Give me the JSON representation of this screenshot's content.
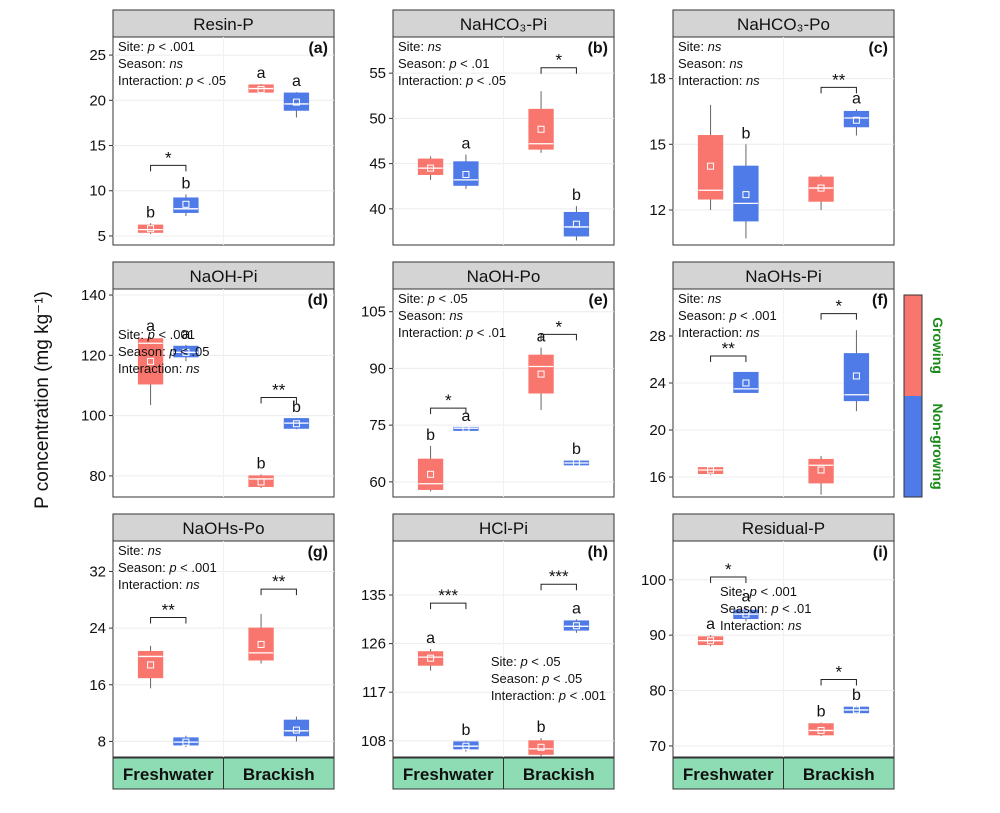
{
  "y_axis_label": "P concentration (mg kg⁻¹)",
  "legend": [
    {
      "label": "Growing",
      "color": "#F8766D"
    },
    {
      "label": "Non-growing",
      "color": "#4F7BE8"
    }
  ],
  "colors": {
    "growing": "#F8766D",
    "nongrowing": "#4F7BE8",
    "strip": "#D4D4D4",
    "xstrip": "#8EDCB4",
    "legend_text": "#1A8A1A"
  },
  "x_categories": [
    "Freshwater",
    "Brackish"
  ],
  "chart_data": [
    {
      "type": "box",
      "title": "Resin-P",
      "tag": "(a)",
      "ylim": [
        4,
        27
      ],
      "yticks": [
        5,
        10,
        15,
        20,
        25
      ],
      "stats": [
        {
          "label": "Site:",
          "value": "p < .001"
        },
        {
          "label": "Season:",
          "value": "ns"
        },
        {
          "label": "Interaction:",
          "value": "p < .05"
        }
      ],
      "groups": [
        {
          "site": "Freshwater",
          "season": "Growing",
          "min": 5.2,
          "q1": 5.4,
          "median": 5.7,
          "q3": 6.2,
          "max": 6.4,
          "mean": 5.8,
          "letter": "b"
        },
        {
          "site": "Freshwater",
          "season": "Non-growing",
          "min": 7.2,
          "q1": 7.6,
          "median": 8.0,
          "q3": 9.2,
          "max": 9.6,
          "mean": 8.5,
          "letter": "b"
        },
        {
          "site": "Brackish",
          "season": "Growing",
          "min": 20.8,
          "q1": 20.9,
          "median": 21.3,
          "q3": 21.7,
          "max": 21.8,
          "mean": 21.2,
          "letter": "a"
        },
        {
          "site": "Brackish",
          "season": "Non-growing",
          "min": 18.1,
          "q1": 18.9,
          "median": 19.6,
          "q3": 20.8,
          "max": 20.9,
          "mean": 19.8,
          "letter": "a"
        }
      ],
      "sig": [
        {
          "site": "Freshwater",
          "label": "*",
          "y": 12.8
        }
      ]
    },
    {
      "type": "box",
      "title": "NaHCO₃-Pi",
      "tag": "(b)",
      "ylim": [
        36,
        59
      ],
      "yticks": [
        40,
        45,
        50,
        55
      ],
      "stats": [
        {
          "label": "Site:",
          "value": "ns"
        },
        {
          "label": "Season:",
          "value": "p < .01"
        },
        {
          "label": "Interaction:",
          "value": "p < .05"
        }
      ],
      "groups": [
        {
          "site": "Freshwater",
          "season": "Growing",
          "min": 43.2,
          "q1": 43.8,
          "median": 44.5,
          "q3": 45.5,
          "max": 45.8,
          "mean": 44.5,
          "letter": ""
        },
        {
          "site": "Freshwater",
          "season": "Non-growing",
          "min": 42.2,
          "q1": 42.6,
          "median": 43.2,
          "q3": 45.2,
          "max": 46.0,
          "mean": 43.8,
          "letter": "a"
        },
        {
          "site": "Brackish",
          "season": "Growing",
          "min": 46.2,
          "q1": 46.6,
          "median": 47.2,
          "q3": 51.0,
          "max": 53.0,
          "mean": 48.8,
          "letter": ""
        },
        {
          "site": "Brackish",
          "season": "Non-growing",
          "min": 36.5,
          "q1": 37.0,
          "median": 38.0,
          "q3": 39.6,
          "max": 40.3,
          "mean": 38.3,
          "letter": "b"
        }
      ],
      "sig": [
        {
          "site": "Brackish",
          "label": "*",
          "y": 55.6
        }
      ]
    },
    {
      "type": "box",
      "title": "NaHCO₃-Po",
      "tag": "(c)",
      "ylim": [
        10.4,
        19.9
      ],
      "yticks": [
        12,
        15,
        18
      ],
      "stats": [
        {
          "label": "Site:",
          "value": "ns"
        },
        {
          "label": "Season:",
          "value": "ns"
        },
        {
          "label": "Interaction:",
          "value": "ns"
        }
      ],
      "groups": [
        {
          "site": "Freshwater",
          "season": "Growing",
          "min": 12.0,
          "q1": 12.5,
          "median": 12.9,
          "q3": 15.4,
          "max": 16.8,
          "mean": 14.0,
          "letter": ""
        },
        {
          "site": "Freshwater",
          "season": "Non-growing",
          "min": 10.7,
          "q1": 11.5,
          "median": 12.3,
          "q3": 14.0,
          "max": 15.0,
          "mean": 12.7,
          "letter": "b"
        },
        {
          "site": "Brackish",
          "season": "Growing",
          "min": 12.0,
          "q1": 12.4,
          "median": 13.0,
          "q3": 13.5,
          "max": 13.6,
          "mean": 13.0,
          "letter": ""
        },
        {
          "site": "Brackish",
          "season": "Non-growing",
          "min": 15.4,
          "q1": 15.8,
          "median": 16.2,
          "q3": 16.5,
          "max": 16.6,
          "mean": 16.1,
          "letter": "a"
        }
      ],
      "sig": [
        {
          "site": "Brackish",
          "label": "**",
          "y": 17.6
        }
      ]
    },
    {
      "type": "box",
      "title": "NaOH-Pi",
      "tag": "(d)",
      "ylim": [
        73,
        142
      ],
      "yticks": [
        80,
        100,
        120,
        140
      ],
      "stats": [
        {
          "label": "Site:",
          "value": "p < .001"
        },
        {
          "label": "Season:",
          "value": "p < .05"
        },
        {
          "label": "Interaction:",
          "value": "ns"
        }
      ],
      "groups": [
        {
          "site": "Freshwater",
          "season": "Growing",
          "min": 103.5,
          "q1": 110.5,
          "median": 124.0,
          "q3": 125.5,
          "max": 126.0,
          "mean": 118.0,
          "letter": "a"
        },
        {
          "site": "Freshwater",
          "season": "Non-growing",
          "min": 118.0,
          "q1": 119.5,
          "median": 121.0,
          "q3": 123.0,
          "max": 123.5,
          "mean": 121.0,
          "letter": "a"
        },
        {
          "site": "Brackish",
          "season": "Growing",
          "min": 76.0,
          "q1": 76.5,
          "median": 79.0,
          "q3": 80.0,
          "max": 80.5,
          "mean": 78.0,
          "letter": "b"
        },
        {
          "site": "Brackish",
          "season": "Non-growing",
          "min": 95.5,
          "q1": 95.8,
          "median": 97.5,
          "q3": 99.0,
          "max": 99.2,
          "mean": 97.3,
          "letter": "b"
        }
      ],
      "sig": [
        {
          "site": "Brackish",
          "label": "**",
          "y": 106.0
        }
      ]
    },
    {
      "type": "box",
      "title": "NaOH-Po",
      "tag": "(e)",
      "ylim": [
        56,
        111
      ],
      "yticks": [
        60,
        75,
        90,
        105
      ],
      "stats": [
        {
          "label": "Site:",
          "value": "p < .05"
        },
        {
          "label": "Season:",
          "value": "ns"
        },
        {
          "label": "Interaction:",
          "value": "p < .01"
        }
      ],
      "groups": [
        {
          "site": "Freshwater",
          "season": "Growing",
          "min": 57.5,
          "q1": 58.0,
          "median": 59.5,
          "q3": 66.0,
          "max": 69.5,
          "mean": 62.0,
          "letter": "b"
        },
        {
          "site": "Freshwater",
          "season": "Non-growing",
          "min": 73.8,
          "q1": 74.0,
          "median": 74.2,
          "q3": 74.4,
          "max": 74.5,
          "mean": 74.2,
          "letter": "a"
        },
        {
          "site": "Brackish",
          "season": "Growing",
          "min": 79.0,
          "q1": 83.5,
          "median": 90.5,
          "q3": 93.5,
          "max": 95.5,
          "mean": 88.5,
          "letter": "a"
        },
        {
          "site": "Brackish",
          "season": "Non-growing",
          "min": 64.2,
          "q1": 64.5,
          "median": 65.0,
          "q3": 65.5,
          "max": 65.8,
          "mean": 65.0,
          "letter": "b"
        }
      ],
      "sig": [
        {
          "site": "Freshwater",
          "label": "*",
          "y": 79.5
        },
        {
          "site": "Brackish",
          "label": "*",
          "y": 99.0
        }
      ]
    },
    {
      "type": "box",
      "title": "NaOHs-Pi",
      "tag": "(f)",
      "ylim": [
        14.3,
        32.0
      ],
      "yticks": [
        16,
        20,
        24,
        28
      ],
      "stats": [
        {
          "label": "Site:",
          "value": "ns"
        },
        {
          "label": "Season:",
          "value": "p < .001"
        },
        {
          "label": "Interaction:",
          "value": "ns"
        }
      ],
      "groups": [
        {
          "site": "Freshwater",
          "season": "Growing",
          "min": 16.2,
          "q1": 16.3,
          "median": 16.6,
          "q3": 16.8,
          "max": 16.9,
          "mean": 16.6,
          "letter": ""
        },
        {
          "site": "Freshwater",
          "season": "Non-growing",
          "min": 23.2,
          "q1": 23.2,
          "median": 23.5,
          "q3": 24.9,
          "max": 24.9,
          "mean": 24.0,
          "letter": ""
        },
        {
          "site": "Brackish",
          "season": "Growing",
          "min": 14.5,
          "q1": 15.5,
          "median": 17.0,
          "q3": 17.5,
          "max": 17.8,
          "mean": 16.6,
          "letter": ""
        },
        {
          "site": "Brackish",
          "season": "Non-growing",
          "min": 21.6,
          "q1": 22.5,
          "median": 23.0,
          "q3": 26.5,
          "max": 28.5,
          "mean": 24.6,
          "letter": ""
        }
      ],
      "sig": [
        {
          "site": "Freshwater",
          "label": "**",
          "y": 26.3
        },
        {
          "site": "Brackish",
          "label": "*",
          "y": 29.9
        }
      ]
    },
    {
      "type": "box",
      "title": "NaOHs-Po",
      "tag": "(g)",
      "ylim": [
        5.8,
        36.3
      ],
      "yticks": [
        8,
        16,
        24,
        32
      ],
      "stats": [
        {
          "label": "Site:",
          "value": "ns"
        },
        {
          "label": "Season:",
          "value": "p < .001"
        },
        {
          "label": "Interaction:",
          "value": "ns"
        }
      ],
      "groups": [
        {
          "site": "Freshwater",
          "season": "Growing",
          "min": 15.5,
          "q1": 17.0,
          "median": 20.0,
          "q3": 20.7,
          "max": 21.5,
          "mean": 18.8,
          "letter": ""
        },
        {
          "site": "Freshwater",
          "season": "Non-growing",
          "min": 7.2,
          "q1": 7.5,
          "median": 7.9,
          "q3": 8.5,
          "max": 8.8,
          "mean": 7.9,
          "letter": ""
        },
        {
          "site": "Brackish",
          "season": "Growing",
          "min": 19.0,
          "q1": 19.5,
          "median": 20.5,
          "q3": 24.0,
          "max": 26.0,
          "mean": 21.7,
          "letter": ""
        },
        {
          "site": "Brackish",
          "season": "Non-growing",
          "min": 8.0,
          "q1": 8.8,
          "median": 9.5,
          "q3": 11.0,
          "max": 11.5,
          "mean": 9.6,
          "letter": ""
        }
      ],
      "sig": [
        {
          "site": "Freshwater",
          "label": "**",
          "y": 25.5
        },
        {
          "site": "Brackish",
          "label": "**",
          "y": 29.5
        }
      ]
    },
    {
      "type": "box",
      "title": "HCl-Pi",
      "tag": "(h)",
      "ylim": [
        105,
        145
      ],
      "yticks": [
        108,
        117,
        126,
        135
      ],
      "stats": [
        {
          "label": "Site:",
          "value": "p < .05"
        },
        {
          "label": "Season:",
          "value": "p < .05"
        },
        {
          "label": "Interaction:",
          "value": "p < .001"
        }
      ],
      "groups": [
        {
          "site": "Freshwater",
          "season": "Growing",
          "min": 121.0,
          "q1": 122.0,
          "median": 123.5,
          "q3": 124.5,
          "max": 125.0,
          "mean": 123.3,
          "letter": "a"
        },
        {
          "site": "Freshwater",
          "season": "Non-growing",
          "min": 106.0,
          "q1": 106.5,
          "median": 107.0,
          "q3": 107.8,
          "max": 108.0,
          "mean": 107.0,
          "letter": "b"
        },
        {
          "site": "Brackish",
          "season": "Growing",
          "min": 105.0,
          "q1": 105.5,
          "median": 106.5,
          "q3": 108.0,
          "max": 108.5,
          "mean": 106.8,
          "letter": "b"
        },
        {
          "site": "Brackish",
          "season": "Non-growing",
          "min": 128.0,
          "q1": 128.5,
          "median": 129.2,
          "q3": 130.2,
          "max": 130.5,
          "mean": 129.3,
          "letter": "a"
        }
      ],
      "sig": [
        {
          "site": "Freshwater",
          "label": "***",
          "y": 133.5
        },
        {
          "site": "Brackish",
          "label": "***",
          "y": 137.0
        }
      ]
    },
    {
      "type": "box",
      "title": "Residual-P",
      "tag": "(i)",
      "ylim": [
        68,
        107
      ],
      "yticks": [
        70,
        80,
        90,
        100
      ],
      "stats": [
        {
          "label": "Site:",
          "value": "p < .001"
        },
        {
          "label": "Season:",
          "value": "p < .01"
        },
        {
          "label": "Interaction:",
          "value": "ns"
        }
      ],
      "groups": [
        {
          "site": "Freshwater",
          "season": "Growing",
          "min": 88.0,
          "q1": 88.3,
          "median": 89.0,
          "q3": 89.7,
          "max": 90.0,
          "mean": 89.0,
          "letter": "a"
        },
        {
          "site": "Freshwater",
          "season": "Non-growing",
          "min": 92.5,
          "q1": 93.0,
          "median": 93.8,
          "q3": 94.5,
          "max": 95.0,
          "mean": 93.8,
          "letter": "a"
        },
        {
          "site": "Brackish",
          "season": "Growing",
          "min": 71.8,
          "q1": 72.0,
          "median": 72.8,
          "q3": 74.0,
          "max": 74.2,
          "mean": 72.8,
          "letter": "b"
        },
        {
          "site": "Brackish",
          "season": "Non-growing",
          "min": 75.8,
          "q1": 76.0,
          "median": 76.5,
          "q3": 77.0,
          "max": 77.2,
          "mean": 76.5,
          "letter": "b"
        }
      ],
      "sig": [
        {
          "site": "Freshwater",
          "label": "*",
          "y": 100.5
        },
        {
          "site": "Brackish",
          "label": "*",
          "y": 82.0
        }
      ]
    }
  ]
}
